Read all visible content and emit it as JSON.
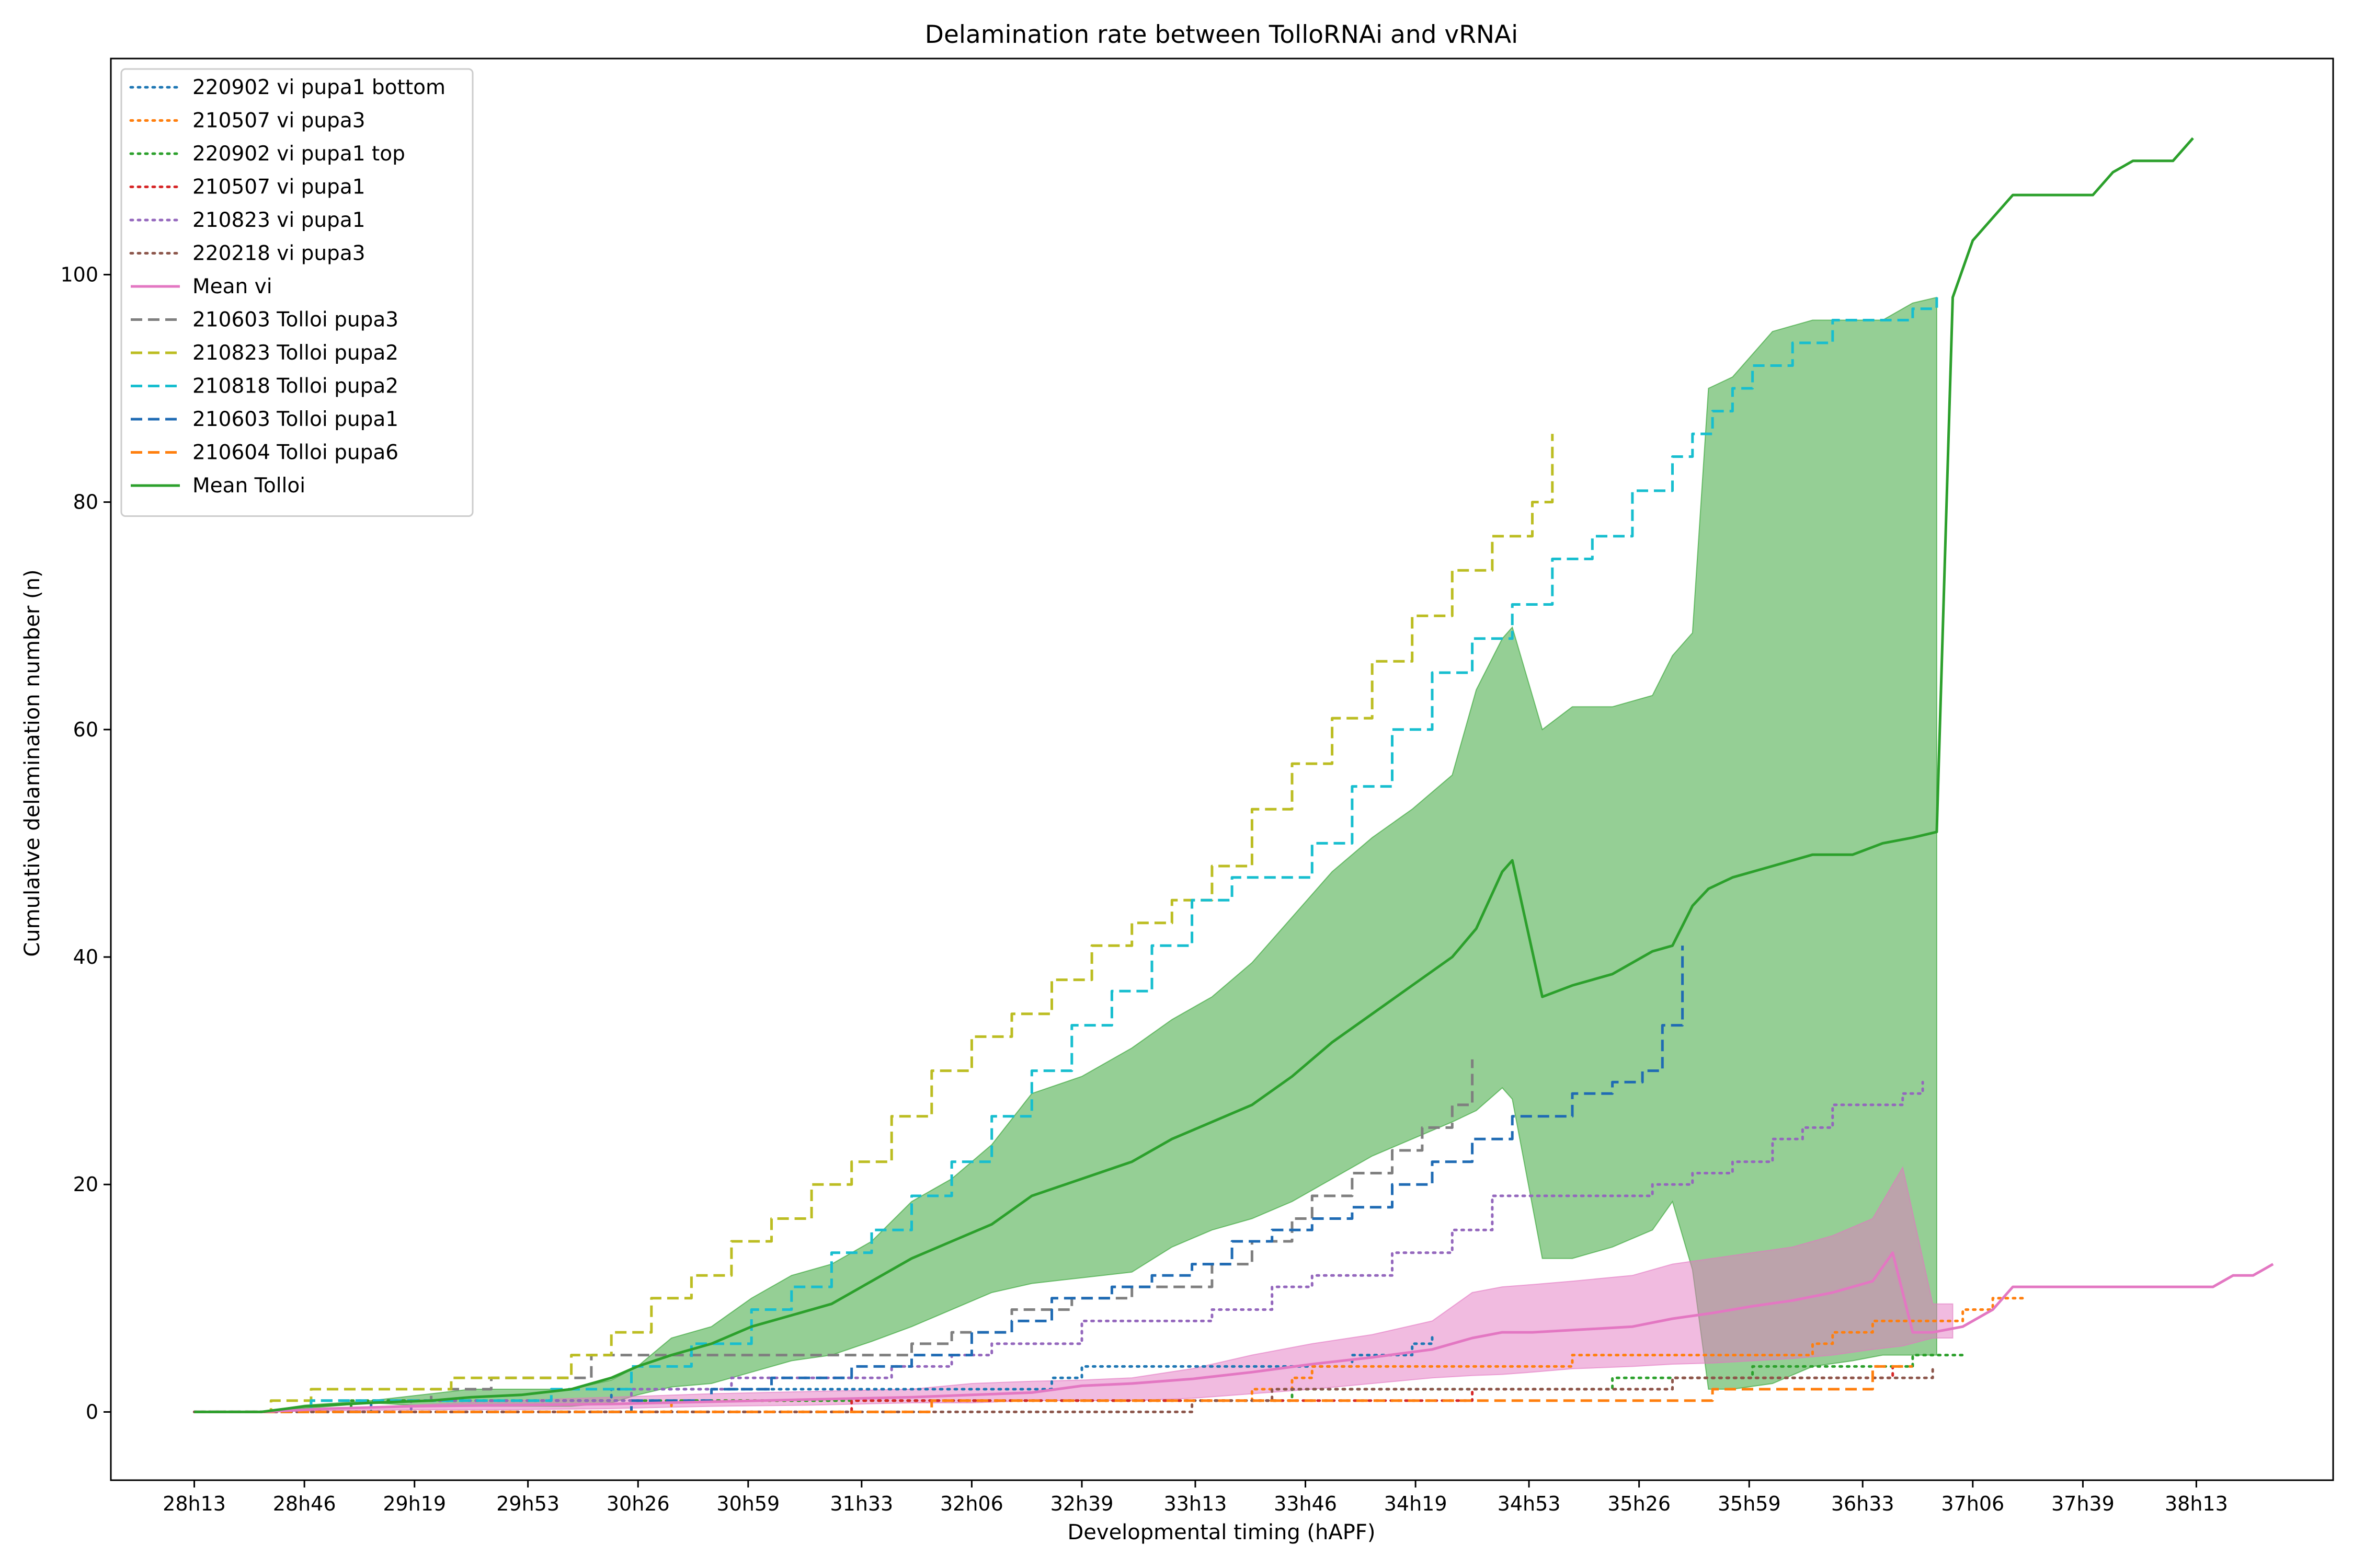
{
  "chart_data": {
    "type": "line",
    "title": "Delamination rate between TolloRNAi and vRNAi",
    "xlabel": "Developmental timing (hAPF)",
    "ylabel": "Cumulative delamination number (n)",
    "x_unit": "hAPF, hours after puparium formation (28h13 = 28.2167)",
    "xlim": [
      27.8,
      38.9
    ],
    "ylim": [
      -6,
      119
    ],
    "xticks": [
      {
        "value": 28.2167,
        "label": "28h13"
      },
      {
        "value": 28.7667,
        "label": "28h46"
      },
      {
        "value": 29.3167,
        "label": "29h19"
      },
      {
        "value": 29.8833,
        "label": "29h53"
      },
      {
        "value": 30.4333,
        "label": "30h26"
      },
      {
        "value": 30.9833,
        "label": "30h59"
      },
      {
        "value": 31.55,
        "label": "31h33"
      },
      {
        "value": 32.1,
        "label": "32h06"
      },
      {
        "value": 32.65,
        "label": "32h39"
      },
      {
        "value": 33.2167,
        "label": "33h13"
      },
      {
        "value": 33.7667,
        "label": "33h46"
      },
      {
        "value": 34.3167,
        "label": "34h19"
      },
      {
        "value": 34.8833,
        "label": "34h53"
      },
      {
        "value": 35.4333,
        "label": "35h26"
      },
      {
        "value": 35.9833,
        "label": "35h59"
      },
      {
        "value": 36.55,
        "label": "36h33"
      },
      {
        "value": 37.1,
        "label": "37h06"
      },
      {
        "value": 37.65,
        "label": "37h39"
      },
      {
        "value": 38.2167,
        "label": "38h13"
      }
    ],
    "yticks": [
      0,
      20,
      40,
      60,
      80,
      100
    ],
    "legend_position": "top-left",
    "grid": false,
    "bands": [
      {
        "name": "Tolloi range",
        "color": "#2ca02c",
        "opacity": 0.5,
        "x": [
          28.2167,
          28.55,
          28.77,
          29.1,
          29.4,
          29.6,
          29.85,
          30.1,
          30.3,
          30.43,
          30.6,
          30.8,
          31.0,
          31.2,
          31.4,
          31.6,
          31.8,
          32.0,
          32.2,
          32.4,
          32.65,
          32.9,
          33.1,
          33.3,
          33.5,
          33.7,
          33.9,
          34.1,
          34.3,
          34.5,
          34.62,
          34.75,
          34.8,
          34.95,
          35.1,
          35.3,
          35.5,
          35.6,
          35.7,
          35.78,
          35.9,
          36.1,
          36.3,
          36.5,
          36.65,
          36.8,
          36.92
        ],
        "lower": [
          0,
          0,
          0.3,
          0.8,
          0.5,
          0.5,
          0.5,
          0.5,
          0.8,
          1.5,
          2.2,
          2.5,
          3.5,
          4.5,
          5.0,
          6.2,
          7.5,
          9.0,
          10.5,
          11.3,
          11.8,
          12.3,
          14.5,
          16.0,
          17.0,
          18.5,
          20.5,
          22.5,
          24.0,
          25.5,
          26.5,
          28.5,
          27.5,
          13.5,
          13.5,
          14.5,
          16.0,
          18.5,
          12.5,
          2.0,
          2.0,
          2.5,
          4.0,
          4.5,
          5.0,
          5.0,
          5.0
        ],
        "upper": [
          0,
          0,
          0.6,
          1.0,
          1.6,
          2.0,
          2.0,
          2.0,
          2.8,
          4.0,
          6.5,
          7.5,
          10.0,
          12.0,
          13.0,
          15.0,
          18.5,
          20.5,
          23.5,
          28.0,
          29.5,
          32.0,
          34.5,
          36.5,
          39.5,
          43.5,
          47.5,
          50.5,
          53.0,
          56.0,
          63.5,
          68.0,
          69.0,
          60.0,
          62.0,
          62.0,
          63.0,
          66.5,
          68.5,
          90.0,
          91.0,
          95.0,
          96.0,
          96.0,
          96.0,
          97.5,
          98.0
        ]
      },
      {
        "name": "vi range",
        "color": "#e377c2",
        "opacity": 0.5,
        "x": [
          28.2167,
          28.55,
          28.9,
          29.3,
          29.8,
          30.3,
          30.8,
          31.3,
          31.8,
          32.1,
          32.4,
          32.65,
          32.9,
          33.2,
          33.5,
          33.8,
          34.1,
          34.4,
          34.6,
          34.75,
          34.9,
          35.1,
          35.4,
          35.6,
          35.8,
          36.0,
          36.2,
          36.4,
          36.6,
          36.75,
          36.9,
          37.0
        ],
        "lower": [
          0,
          0,
          0.1,
          0.2,
          0.2,
          0.3,
          0.5,
          0.6,
          0.8,
          0.8,
          1.0,
          1.0,
          1.0,
          1.2,
          1.6,
          2.0,
          2.5,
          3.0,
          3.2,
          3.3,
          3.5,
          3.8,
          4.0,
          4.2,
          4.3,
          4.5,
          4.7,
          5.0,
          5.5,
          5.8,
          6.5,
          6.5
        ],
        "upper": [
          0,
          0,
          0.3,
          0.6,
          1.0,
          1.3,
          1.6,
          1.8,
          2.0,
          2.5,
          2.7,
          2.8,
          3.0,
          3.8,
          5.0,
          6.0,
          6.8,
          8.0,
          10.5,
          11.0,
          11.2,
          11.5,
          12.0,
          13.0,
          13.5,
          14.0,
          14.5,
          15.5,
          17.0,
          21.5,
          9.5,
          9.5
        ]
      }
    ],
    "series": [
      {
        "name": "220902 vi pupa1 bottom",
        "color": "#1f77b4",
        "style": "dotted",
        "step": true,
        "x": [
          28.2167,
          29.1,
          29.6,
          30.3,
          30.8,
          31.4,
          32.0,
          32.5,
          32.65,
          33.3,
          33.8,
          34.0,
          34.3,
          34.4
        ],
        "y": [
          0,
          1,
          1,
          2,
          2,
          2,
          2,
          3,
          4,
          4,
          4,
          5,
          6,
          7
        ]
      },
      {
        "name": "210507 vi pupa3",
        "color": "#ff7f0e",
        "style": "dotted",
        "step": true,
        "x": [
          28.2167,
          29.0,
          29.8,
          30.6,
          31.6,
          32.5,
          33.2,
          33.5,
          33.7,
          33.8,
          34.0,
          34.7,
          34.85,
          35.1,
          35.6,
          36.1,
          36.3,
          36.4,
          36.6,
          36.8,
          37.05,
          37.2,
          37.35
        ],
        "y": [
          0,
          0,
          0,
          1,
          1,
          1,
          1,
          2,
          3,
          4,
          4,
          4,
          4,
          5,
          5,
          5,
          6,
          7,
          8,
          8,
          9,
          10,
          10
        ]
      },
      {
        "name": "220902 vi pupa1 top",
        "color": "#2ca02c",
        "style": "dotted",
        "step": true,
        "x": [
          28.2167,
          29.0,
          30.0,
          31.0,
          32.0,
          33.0,
          33.7,
          34.5,
          35.3,
          35.5,
          36.0,
          36.4,
          36.8,
          37.05
        ],
        "y": [
          0,
          1,
          1,
          1,
          1,
          1,
          2,
          2,
          3,
          3,
          4,
          4,
          5,
          5
        ]
      },
      {
        "name": "210507 vi pupa1",
        "color": "#d62728",
        "style": "dotted",
        "step": true,
        "x": [
          28.2167,
          29.5,
          30.5,
          31.5,
          32.5,
          33.6,
          34.6,
          35.2,
          35.6,
          36.2,
          36.7
        ],
        "y": [
          0,
          0,
          0,
          1,
          1,
          1,
          2,
          2,
          3,
          3,
          4
        ]
      },
      {
        "name": "210823 vi pupa1",
        "color": "#9467bd",
        "style": "dotted",
        "step": true,
        "x": [
          28.2167,
          29.3,
          29.8,
          30.4,
          30.9,
          31.3,
          31.7,
          32.0,
          32.2,
          32.4,
          32.65,
          33.3,
          33.6,
          33.8,
          34.2,
          34.5,
          34.7,
          34.9,
          35.5,
          35.7,
          35.9,
          36.1,
          36.25,
          36.4,
          36.65,
          36.75,
          36.85
        ],
        "y": [
          0,
          1,
          1,
          2,
          3,
          3,
          4,
          5,
          6,
          6,
          8,
          9,
          11,
          12,
          14,
          16,
          19,
          19,
          20,
          21,
          22,
          24,
          25,
          27,
          27,
          28,
          29
        ]
      },
      {
        "name": "220218 vi pupa3",
        "color": "#8c564b",
        "style": "dotted",
        "step": true,
        "x": [
          28.2167,
          30.0,
          31.0,
          32.0,
          33.0,
          33.2,
          33.6,
          34.3,
          35.0,
          35.6,
          36.3,
          36.9
        ],
        "y": [
          0,
          0,
          0,
          0,
          0,
          1,
          2,
          2,
          2,
          3,
          3,
          4
        ]
      },
      {
        "name": "210603 Tolloi pupa3",
        "color": "#7f7f7f",
        "style": "dashed",
        "step": true,
        "x": [
          28.2167,
          28.8,
          29.1,
          29.4,
          29.7,
          30.0,
          30.2,
          30.8,
          31.4,
          31.8,
          32.0,
          32.3,
          32.6,
          32.9,
          33.1,
          33.3,
          33.5,
          33.7,
          33.8,
          34.0,
          34.2,
          34.35,
          34.5,
          34.6
        ],
        "y": [
          0,
          1,
          1,
          2,
          3,
          3,
          5,
          5,
          5,
          6,
          7,
          9,
          10,
          11,
          11,
          13,
          15,
          17,
          19,
          21,
          23,
          25,
          27,
          31
        ]
      },
      {
        "name": "210823 Tolloi pupa2",
        "color": "#bcbd22",
        "style": "dashed",
        "step": true,
        "x": [
          28.2167,
          28.6,
          28.8,
          29.2,
          29.5,
          29.8,
          30.1,
          30.3,
          30.5,
          30.7,
          30.9,
          31.1,
          31.3,
          31.5,
          31.7,
          31.9,
          32.1,
          32.3,
          32.5,
          32.7,
          32.9,
          33.1,
          33.3,
          33.5,
          33.7,
          33.9,
          34.1,
          34.3,
          34.5,
          34.7,
          34.9,
          35.0
        ],
        "y": [
          0,
          1,
          2,
          2,
          3,
          3,
          5,
          7,
          10,
          12,
          15,
          17,
          20,
          22,
          26,
          30,
          33,
          35,
          38,
          41,
          43,
          45,
          48,
          53,
          57,
          61,
          66,
          70,
          74,
          77,
          80,
          86
        ]
      },
      {
        "name": "210818 Tolloi pupa2",
        "color": "#17becf",
        "style": "dashed",
        "step": true,
        "x": [
          28.2167,
          28.8,
          29.5,
          30.0,
          30.4,
          30.7,
          31.0,
          31.2,
          31.4,
          31.6,
          31.8,
          32.0,
          32.2,
          32.4,
          32.6,
          32.8,
          33.0,
          33.2,
          33.4,
          33.6,
          33.8,
          34.0,
          34.2,
          34.4,
          34.6,
          34.8,
          35.0,
          35.2,
          35.4,
          35.6,
          35.7,
          35.8,
          35.9,
          36.0,
          36.2,
          36.4,
          36.6,
          36.8,
          36.92
        ],
        "y": [
          0,
          1,
          1,
          2,
          4,
          6,
          9,
          11,
          14,
          16,
          19,
          22,
          26,
          30,
          34,
          37,
          41,
          45,
          47,
          47,
          50,
          55,
          60,
          65,
          68,
          71,
          75,
          77,
          81,
          84,
          86,
          88,
          90,
          92,
          94,
          96,
          96,
          97,
          98
        ]
      },
      {
        "name": "210603 Tolloi pupa1",
        "color": "#1f6bb4",
        "style": "dashed",
        "step": true,
        "x": [
          28.2167,
          29.0,
          29.8,
          30.4,
          30.8,
          31.1,
          31.5,
          31.8,
          32.1,
          32.3,
          32.5,
          32.8,
          33.0,
          33.2,
          33.4,
          33.6,
          33.8,
          34.0,
          34.2,
          34.4,
          34.6,
          34.8,
          35.1,
          35.3,
          35.45,
          35.55,
          35.65
        ],
        "y": [
          0,
          0,
          0,
          1,
          2,
          3,
          4,
          5,
          7,
          8,
          10,
          11,
          12,
          13,
          15,
          16,
          17,
          18,
          20,
          22,
          24,
          26,
          28,
          29,
          30,
          34,
          41
        ]
      },
      {
        "name": "210604 Tolloi pupa6",
        "color": "#ff7f0e",
        "style": "dashed",
        "step": true,
        "x": [
          28.2167,
          30.0,
          31.0,
          31.9,
          33.0,
          34.0,
          35.0,
          35.55,
          35.8,
          36.5,
          36.6,
          36.8
        ],
        "y": [
          0,
          0,
          0,
          1,
          1,
          1,
          1,
          1,
          2,
          2,
          4,
          4
        ]
      },
      {
        "name": "Mean vi",
        "color": "#e377c2",
        "style": "solid",
        "step": false,
        "x": [
          28.2167,
          28.55,
          28.9,
          29.3,
          29.8,
          30.3,
          30.8,
          31.3,
          31.8,
          32.1,
          32.4,
          32.65,
          32.9,
          33.2,
          33.5,
          33.8,
          34.1,
          34.4,
          34.6,
          34.75,
          34.9,
          35.1,
          35.4,
          35.6,
          35.8,
          36.0,
          36.2,
          36.4,
          36.6,
          36.7,
          36.8,
          36.9,
          37.05,
          37.2,
          37.3,
          37.4,
          37.6,
          37.8,
          38.0,
          38.3,
          38.4,
          38.5,
          38.6
        ],
        "y": [
          0,
          0,
          0.3,
          0.5,
          0.6,
          0.7,
          0.9,
          1.1,
          1.3,
          1.5,
          1.7,
          2.3,
          2.5,
          2.9,
          3.5,
          4.2,
          4.8,
          5.5,
          6.5,
          7.0,
          7.0,
          7.2,
          7.5,
          8.2,
          8.7,
          9.3,
          9.8,
          10.5,
          11.5,
          14.0,
          7.0,
          7.0,
          7.5,
          9.0,
          11.0,
          11.0,
          11.0,
          11.0,
          11.0,
          11.0,
          12.0,
          12.0,
          13.0
        ]
      },
      {
        "name": "Mean Tolloi",
        "color": "#2ca02c",
        "style": "solid",
        "step": false,
        "x": [
          28.2167,
          28.55,
          28.77,
          29.1,
          29.4,
          29.6,
          29.85,
          30.1,
          30.3,
          30.43,
          30.6,
          30.8,
          31.0,
          31.2,
          31.4,
          31.6,
          31.8,
          32.0,
          32.2,
          32.4,
          32.65,
          32.9,
          33.1,
          33.3,
          33.5,
          33.7,
          33.9,
          34.1,
          34.3,
          34.5,
          34.62,
          34.75,
          34.8,
          34.95,
          35.1,
          35.3,
          35.5,
          35.6,
          35.7,
          35.78,
          35.9,
          36.1,
          36.3,
          36.5,
          36.65,
          36.8,
          36.92,
          37.0,
          37.1,
          37.2,
          37.3,
          37.5,
          37.7,
          37.8,
          37.9,
          38.0,
          38.1,
          38.2
        ],
        "y": [
          0,
          0,
          0.5,
          0.8,
          1.0,
          1.3,
          1.5,
          2.0,
          3.0,
          4.0,
          5.0,
          6.0,
          7.5,
          8.5,
          9.5,
          11.5,
          13.5,
          15.0,
          16.5,
          19.0,
          20.5,
          22.0,
          24.0,
          25.5,
          27.0,
          29.5,
          32.5,
          35.0,
          37.5,
          40.0,
          42.5,
          47.5,
          48.5,
          36.5,
          37.5,
          38.5,
          40.5,
          41.0,
          44.5,
          46.0,
          47.0,
          48.0,
          49.0,
          49.0,
          50.0,
          50.5,
          51.0,
          98.0,
          103.0,
          105.0,
          107.0,
          107.0,
          107.0,
          109.0,
          110.0,
          110.0,
          110.0,
          112.0
        ]
      }
    ]
  }
}
